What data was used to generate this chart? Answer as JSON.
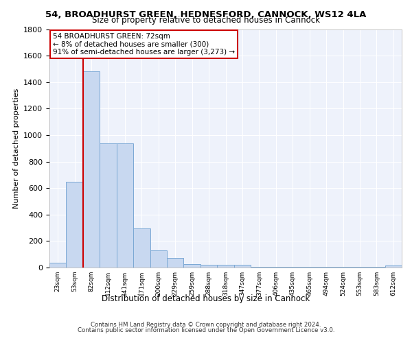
{
  "title1": "54, BROADHURST GREEN, HEDNESFORD, CANNOCK, WS12 4LA",
  "title2": "Size of property relative to detached houses in Cannock",
  "xlabel": "Distribution of detached houses by size in Cannock",
  "ylabel": "Number of detached properties",
  "bin_labels": [
    "23sqm",
    "53sqm",
    "82sqm",
    "112sqm",
    "141sqm",
    "171sqm",
    "200sqm",
    "229sqm",
    "259sqm",
    "288sqm",
    "318sqm",
    "347sqm",
    "377sqm",
    "406sqm",
    "435sqm",
    "465sqm",
    "494sqm",
    "524sqm",
    "553sqm",
    "583sqm",
    "612sqm"
  ],
  "bar_values": [
    35,
    650,
    1480,
    935,
    935,
    295,
    130,
    70,
    25,
    20,
    20,
    20,
    5,
    5,
    5,
    5,
    5,
    5,
    5,
    5,
    15
  ],
  "bar_color": "#c8d8f0",
  "bar_edge_color": "#7ba8d4",
  "vline_x_index": 1,
  "vline_color": "#cc0000",
  "annotation_text": "54 BROADHURST GREEN: 72sqm\n← 8% of detached houses are smaller (300)\n91% of semi-detached houses are larger (3,273) →",
  "annotation_box_color": "#ffffff",
  "annotation_box_edge": "#cc0000",
  "ylim": [
    0,
    1800
  ],
  "yticks": [
    0,
    200,
    400,
    600,
    800,
    1000,
    1200,
    1400,
    1600,
    1800
  ],
  "bg_color": "#eef2fb",
  "footnote1": "Contains HM Land Registry data © Crown copyright and database right 2024.",
  "footnote2": "Contains public sector information licensed under the Open Government Licence v3.0."
}
